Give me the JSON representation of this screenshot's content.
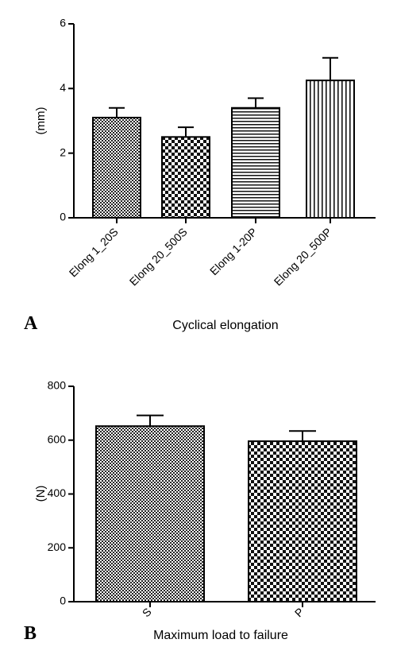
{
  "chart_data": [
    {
      "type": "bar",
      "panel_label": "A",
      "title": "",
      "xlabel": "Cyclical elongation",
      "ylabel": "(mm)",
      "ylim": [
        0,
        6
      ],
      "yticks": [
        "0",
        "2",
        "4",
        "6"
      ],
      "categories": [
        "Elong 1_20S",
        "Elong 20_500S",
        "Elong 1-20P",
        "Elong 20_500P"
      ],
      "values": [
        3.1,
        2.5,
        3.4,
        4.25
      ],
      "errors": [
        0.3,
        0.3,
        0.3,
        0.7
      ],
      "patterns": [
        "fine-check",
        "check",
        "horizontal-lines",
        "vertical-lines"
      ],
      "grid": false,
      "legend": "none"
    },
    {
      "type": "bar",
      "panel_label": "B",
      "title": "",
      "xlabel": "Maximum load to failure",
      "ylabel": "(N)",
      "ylim": [
        0,
        800
      ],
      "yticks": [
        "0",
        "200",
        "400",
        "600",
        "800"
      ],
      "categories": [
        "S",
        "P"
      ],
      "values": [
        652,
        596
      ],
      "errors": [
        40,
        38
      ],
      "patterns": [
        "fine-check",
        "check"
      ],
      "grid": false,
      "legend": "none"
    }
  ]
}
